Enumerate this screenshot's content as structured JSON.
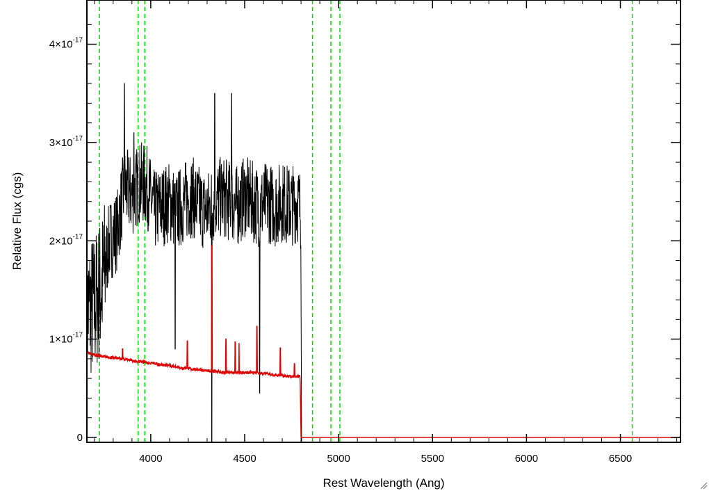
{
  "chart_data": {
    "type": "line",
    "xlabel": "Rest Wavelength (Ang)",
    "ylabel": "Relative Flux (cgs)",
    "xlim": [
      3660,
      6820
    ],
    "ylim": [
      -5e-19,
      4.45e-17
    ],
    "x_ticks": [
      4000,
      4500,
      5000,
      5500,
      6000,
      6500
    ],
    "x_tick_labels": [
      "4000",
      "4500",
      "5000",
      "5500",
      "6000",
      "6500"
    ],
    "y_ticks": [
      0,
      1e-17,
      2e-17,
      3e-17,
      4e-17
    ],
    "y_tick_labels": [
      {
        "mantissa": "0",
        "exp": ""
      },
      {
        "mantissa": "1×10",
        "exp": "-17"
      },
      {
        "mantissa": "2×10",
        "exp": "-17"
      },
      {
        "mantissa": "3×10",
        "exp": "-17"
      },
      {
        "mantissa": "4×10",
        "exp": "-17"
      }
    ],
    "vertical_lines": {
      "color": "#00dd00",
      "style": "dashed",
      "wavelengths": [
        3727,
        3933,
        3968,
        4861,
        4959,
        5007,
        6563
      ]
    },
    "series": [
      {
        "color": "#000000",
        "kind": "observed noisy spectrum",
        "x_range": [
          3660,
          4800
        ],
        "mean_flux": 2.2e-17,
        "points": [
          [
            3660,
            1.3e-17
          ],
          [
            3700,
            1.35e-17
          ],
          [
            3740,
            1.55e-17
          ],
          [
            3780,
            2e-17
          ],
          [
            3820,
            2.1e-17
          ],
          [
            3860,
            2.55e-17
          ],
          [
            3900,
            2.45e-17
          ],
          [
            3940,
            2.6e-17
          ],
          [
            3980,
            2.55e-17
          ],
          [
            4020,
            2.3e-17
          ],
          [
            4060,
            2.35e-17
          ],
          [
            4100,
            2.4e-17
          ],
          [
            4140,
            2.3e-17
          ],
          [
            4180,
            2.4e-17
          ],
          [
            4220,
            2.45e-17
          ],
          [
            4260,
            2.35e-17
          ],
          [
            4300,
            2.3e-17
          ],
          [
            4340,
            2.4e-17
          ],
          [
            4380,
            2.45e-17
          ],
          [
            4420,
            2.4e-17
          ],
          [
            4460,
            2.35e-17
          ],
          [
            4500,
            2.45e-17
          ],
          [
            4540,
            2.4e-17
          ],
          [
            4580,
            2.35e-17
          ],
          [
            4620,
            2.4e-17
          ],
          [
            4660,
            2.35e-17
          ],
          [
            4700,
            2.4e-17
          ],
          [
            4740,
            2.35e-17
          ],
          [
            4780,
            2.4e-17
          ],
          [
            4800,
            2.3e-17
          ]
        ],
        "spikes_high": [
          [
            3860,
            3.6e-17
          ],
          [
            3910,
            3.1e-17
          ],
          [
            4340,
            3.5e-17
          ],
          [
            4430,
            3.5e-17
          ]
        ],
        "spikes_low": [
          [
            4130,
            9e-18
          ],
          [
            4325,
            -5e-19
          ],
          [
            4580,
            4.5e-18
          ]
        ],
        "cutoff": [
          4803,
          -5e-19
        ]
      },
      {
        "color": "#dd0000",
        "kind": "model spectrum",
        "points": [
          [
            3660,
            8.7e-18
          ],
          [
            3700,
            8.4e-18
          ],
          [
            3750,
            8.2e-18
          ],
          [
            3800,
            8.1e-18
          ],
          [
            3850,
            8e-18
          ],
          [
            3900,
            7.8e-18
          ],
          [
            3950,
            7.7e-18
          ],
          [
            4000,
            7.6e-18
          ],
          [
            4050,
            7.4e-18
          ],
          [
            4100,
            7.3e-18
          ],
          [
            4150,
            7.1e-18
          ],
          [
            4200,
            7e-18
          ],
          [
            4250,
            6.9e-18
          ],
          [
            4300,
            6.8e-18
          ],
          [
            4350,
            6.7e-18
          ],
          [
            4400,
            6.6e-18
          ],
          [
            4450,
            6.6e-18
          ],
          [
            4500,
            6.6e-18
          ],
          [
            4550,
            6.6e-18
          ],
          [
            4600,
            6.5e-18
          ],
          [
            4650,
            6.4e-18
          ],
          [
            4700,
            6.3e-18
          ],
          [
            4750,
            6.2e-18
          ],
          [
            4795,
            6.2e-18
          ],
          [
            4800,
            0.0
          ],
          [
            6820,
            0.0
          ]
        ],
        "emission_lines": [
          [
            3850,
            9e-18
          ],
          [
            4195,
            9.8e-18
          ],
          [
            4325,
            1.95e-17
          ],
          [
            4400,
            1e-17
          ],
          [
            4450,
            9.7e-18
          ],
          [
            4470,
            9.6e-18
          ],
          [
            4565,
            1.13e-17
          ],
          [
            4690,
            9.1e-18
          ],
          [
            4765,
            7.5e-18
          ]
        ]
      }
    ],
    "grid": false,
    "legend": "none"
  }
}
